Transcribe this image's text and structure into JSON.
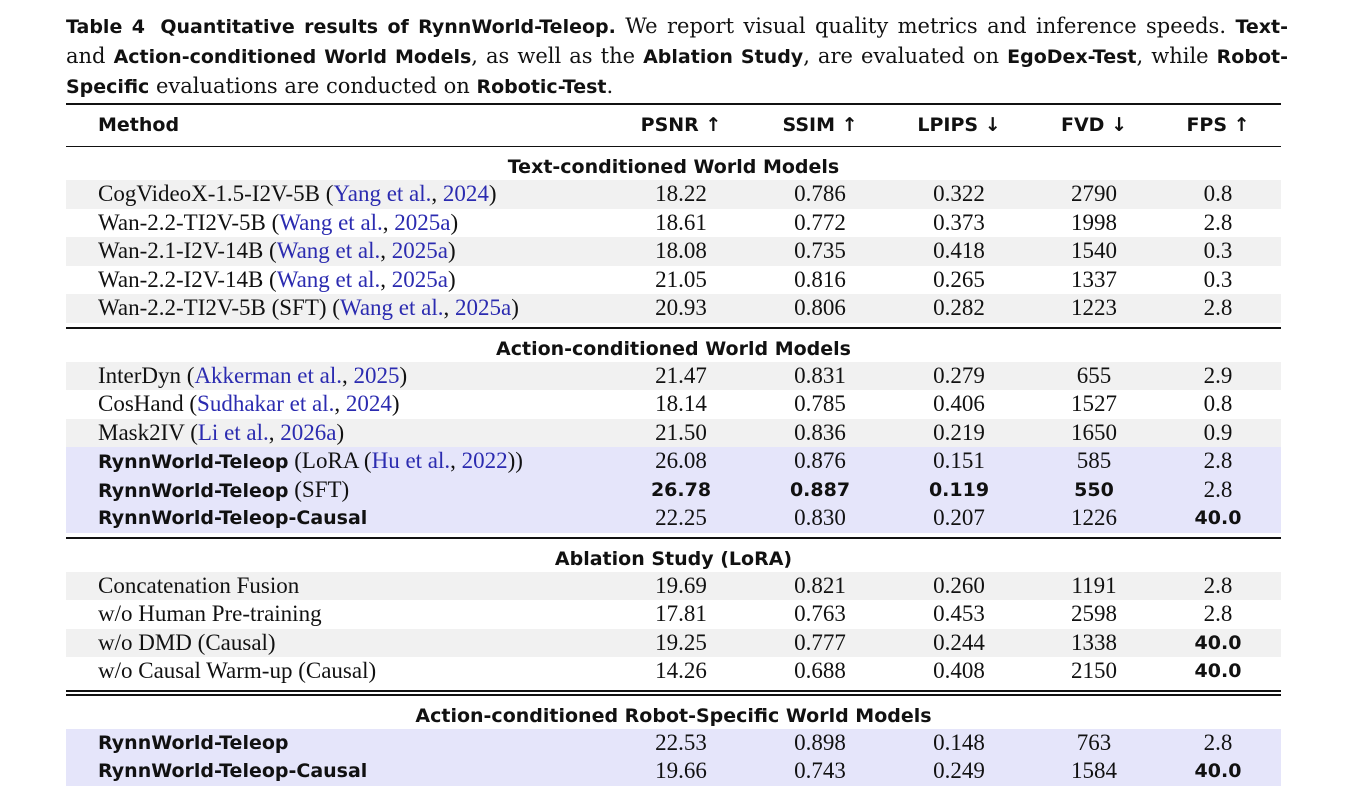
{
  "caption": {
    "label": "Table 4",
    "title": "Quantitative results of RynnWorld-Teleop.",
    "text_1": "We report visual quality metrics and inference speeds.",
    "b1": "Text-",
    "text_2": "and",
    "b2": "Action-conditioned World Models",
    "text_3": ", as well as the",
    "b3": "Ablation Study",
    "text_4": ", are evaluated on",
    "b4": "EgoDex-Test",
    "text_5": ", while",
    "b5": "Robot-Specific",
    "text_6": "evaluations are conducted on",
    "b6": "Robotic-Test",
    "text_7": "."
  },
  "columns": {
    "method": "Method",
    "psnr": "PSNR ↑",
    "ssim": "SSIM ↑",
    "lpips": "LPIPS ↓",
    "fvd": "FVD ↓",
    "fps": "FPS ↑"
  },
  "sections": {
    "text": "Text-conditioned World Models",
    "action": "Action-conditioned World Models",
    "ablation": "Ablation Study (LoRA)",
    "robot": "Action-conditioned Robot-Specific World Models"
  },
  "rows": {
    "r1": {
      "name": "CogVideoX-1.5-I2V-5B (",
      "author": "Yang et al.",
      "sep": ", ",
      "year": "2024",
      "close": ")",
      "psnr": "18.22",
      "ssim": "0.786",
      "lpips": "0.322",
      "fvd": "2790",
      "fps": "0.8"
    },
    "r2": {
      "name": "Wan-2.2-TI2V-5B (",
      "author": "Wang et al.",
      "sep": ", ",
      "year": "2025a",
      "close": ")",
      "psnr": "18.61",
      "ssim": "0.772",
      "lpips": "0.373",
      "fvd": "1998",
      "fps": "2.8"
    },
    "r3": {
      "name": "Wan-2.1-I2V-14B (",
      "author": "Wang et al.",
      "sep": ", ",
      "year": "2025a",
      "close": ")",
      "psnr": "18.08",
      "ssim": "0.735",
      "lpips": "0.418",
      "fvd": "1540",
      "fps": "0.3"
    },
    "r4": {
      "name": "Wan-2.2-I2V-14B (",
      "author": "Wang et al.",
      "sep": ", ",
      "year": "2025a",
      "close": ")",
      "psnr": "21.05",
      "ssim": "0.816",
      "lpips": "0.265",
      "fvd": "1337",
      "fps": "0.3"
    },
    "r5": {
      "name": "Wan-2.2-TI2V-5B (SFT) (",
      "author": "Wang et al.",
      "sep": ", ",
      "year": "2025a",
      "close": ")",
      "psnr": "20.93",
      "ssim": "0.806",
      "lpips": "0.282",
      "fvd": "1223",
      "fps": "2.8"
    },
    "r6": {
      "name": "InterDyn (",
      "author": "Akkerman et al.",
      "sep": ", ",
      "year": "2025",
      "close": ")",
      "psnr": "21.47",
      "ssim": "0.831",
      "lpips": "0.279",
      "fvd": "655",
      "fps": "2.9"
    },
    "r7": {
      "name": "CosHand (",
      "author": "Sudhakar et al.",
      "sep": ", ",
      "year": "2024",
      "close": ")",
      "psnr": "18.14",
      "ssim": "0.785",
      "lpips": "0.406",
      "fvd": "1527",
      "fps": "0.8"
    },
    "r8": {
      "name": "Mask2IV (",
      "author": "Li et al.",
      "sep": ", ",
      "year": "2026a",
      "close": ")",
      "psnr": "21.50",
      "ssim": "0.836",
      "lpips": "0.219",
      "fvd": "1650",
      "fps": "0.9"
    },
    "r9": {
      "name_bold": "RynnWorld-Teleop",
      "name": " (LoRA (",
      "author": "Hu et al.",
      "sep": ", ",
      "year": "2022",
      "close": "))",
      "psnr": "26.08",
      "ssim": "0.876",
      "lpips": "0.151",
      "fvd": "585",
      "fps": "2.8"
    },
    "r10": {
      "name_bold": "RynnWorld-Teleop",
      "name": " (SFT)",
      "psnr": "26.78",
      "ssim": "0.887",
      "lpips": "0.119",
      "fvd": "550",
      "fps": "2.8"
    },
    "r11": {
      "name_bold": "RynnWorld-Teleop-Causal",
      "psnr": "22.25",
      "ssim": "0.830",
      "lpips": "0.207",
      "fvd": "1226",
      "fps": "40.0"
    },
    "r12": {
      "name": "Concatenation Fusion",
      "psnr": "19.69",
      "ssim": "0.821",
      "lpips": "0.260",
      "fvd": "1191",
      "fps": "2.8"
    },
    "r13": {
      "name": "w/o Human Pre-training",
      "psnr": "17.81",
      "ssim": "0.763",
      "lpips": "0.453",
      "fvd": "2598",
      "fps": "2.8"
    },
    "r14": {
      "name": "w/o DMD (Causal)",
      "psnr": "19.25",
      "ssim": "0.777",
      "lpips": "0.244",
      "fvd": "1338",
      "fps": "40.0"
    },
    "r15": {
      "name": "w/o Causal Warm-up (Causal)",
      "psnr": "14.26",
      "ssim": "0.688",
      "lpips": "0.408",
      "fvd": "2150",
      "fps": "40.0"
    },
    "r16": {
      "name_bold": "RynnWorld-Teleop",
      "psnr": "22.53",
      "ssim": "0.898",
      "lpips": "0.148",
      "fvd": "763",
      "fps": "2.8"
    },
    "r17": {
      "name_bold": "RynnWorld-Teleop-Causal",
      "psnr": "19.66",
      "ssim": "0.743",
      "lpips": "0.249",
      "fvd": "1584",
      "fps": "40.0"
    }
  }
}
